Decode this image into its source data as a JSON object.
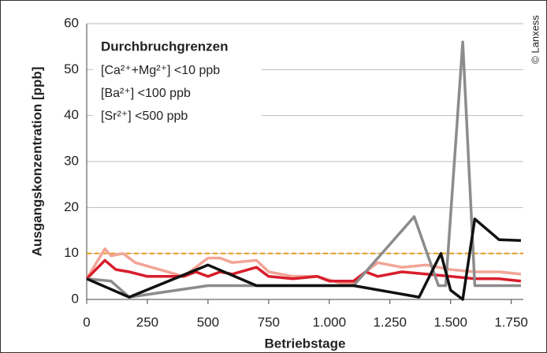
{
  "chart_data": {
    "type": "line",
    "xlabel": "Betriebstage",
    "ylabel": "Ausgangskonzentration [ppb]",
    "credit": "© Lanxess",
    "note_title": "Durchbruchgrenzen",
    "notes": [
      "[Ca²⁺+Mg²⁺] <10 ppb",
      "[Ba²⁺] <100 ppb",
      "[Sr²⁺] <500 ppb"
    ],
    "xlim": [
      0,
      1800
    ],
    "ylim": [
      0,
      60
    ],
    "xticks": [
      0,
      250,
      500,
      750,
      {
        "value": 1000,
        "label": "1.000"
      },
      {
        "value": 1250,
        "label": "1.250"
      },
      {
        "value": 1500,
        "label": "1.500"
      },
      {
        "value": 1750,
        "label": "1.750"
      }
    ],
    "yticks": [
      0,
      10,
      20,
      30,
      40,
      50,
      60
    ],
    "grid": true,
    "reference_lines": [
      {
        "value": 10,
        "color": "#e89a1a",
        "style": "dashed"
      }
    ],
    "series": [
      {
        "color": "#f2a596",
        "x": [
          0,
          75,
          100,
          150,
          200,
          300,
          400,
          500,
          550,
          600,
          700,
          750,
          850,
          950,
          1050,
          1100,
          1150,
          1200,
          1300,
          1400,
          1500,
          1600,
          1700,
          1790
        ],
        "values": [
          4.5,
          11,
          9.5,
          10,
          8,
          6.5,
          5,
          9,
          9,
          8,
          8.5,
          6,
          5,
          5,
          3.5,
          3.5,
          6,
          8,
          7,
          7.5,
          6.5,
          6,
          6,
          5.5
        ]
      },
      {
        "color": "#d81e2c",
        "x": [
          0,
          75,
          120,
          175,
          250,
          400,
          450,
          500,
          550,
          600,
          700,
          750,
          850,
          950,
          1000,
          1100,
          1150,
          1200,
          1300,
          1400,
          1500,
          1600,
          1700,
          1790
        ],
        "values": [
          4.5,
          8.5,
          6.5,
          6,
          5,
          5,
          6,
          5,
          6,
          5.5,
          7,
          5,
          4.5,
          5,
          4,
          4,
          6,
          5,
          6,
          5.5,
          5,
          4.5,
          4.5,
          4
        ]
      },
      {
        "color": "#8c8c8c",
        "x": [
          0,
          100,
          175,
          500,
          600,
          1100,
          1350,
          1450,
          1480,
          1550,
          1600,
          1790
        ],
        "values": [
          4.5,
          4,
          0.5,
          3,
          3,
          3,
          18,
          3,
          3,
          56,
          3,
          3
        ]
      },
      {
        "color": "#111111",
        "x": [
          0,
          175,
          500,
          700,
          1100,
          1370,
          1460,
          1500,
          1550,
          1600,
          1700,
          1790
        ],
        "values": [
          4.5,
          0.5,
          7.5,
          3,
          3,
          0.5,
          10,
          2,
          0,
          17.5,
          13,
          12.8
        ]
      }
    ]
  }
}
